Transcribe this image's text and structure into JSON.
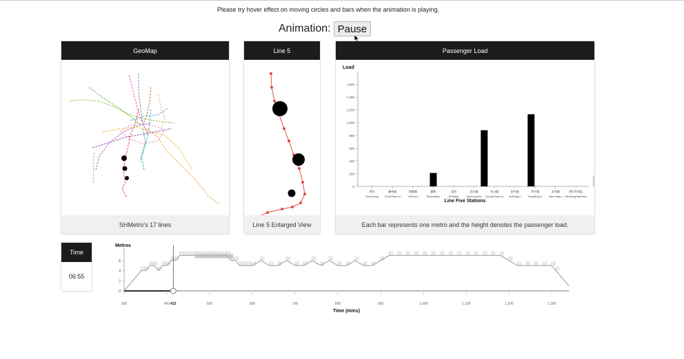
{
  "hint": "Please try hover effect on moving circles and bars when the animation is playing.",
  "animation": {
    "label": "Animation:",
    "button_label": "Pause"
  },
  "geomap": {
    "title": "GeoMap",
    "footer": "SHMetro's 17 lines"
  },
  "line5": {
    "title": "Line 5",
    "footer": "Line 5 Enlarged View"
  },
  "passenger": {
    "title": "Passenger Load",
    "footer": "Each bar represents one metro and the height denotes the passenger load."
  },
  "time": {
    "title": "Time",
    "value": "06:55"
  },
  "colors": {
    "line5": "#e04a44",
    "header": "#1c1c1c",
    "bar": "#000000",
    "bar_faded": "#cccccc"
  },
  "chart_data": [
    {
      "type": "bar",
      "title": "",
      "ylabel": "Load",
      "xlabel": "Line Five Stations",
      "ylim": [
        0,
        1800
      ],
      "yticks": [
        0,
        200,
        400,
        600,
        800,
        1000,
        1200,
        1400,
        1600
      ],
      "ytick_labels": [
        "0",
        "200",
        "400",
        "600",
        "800",
        "1,000",
        "1,200",
        "1,400",
        "1,600"
      ],
      "categories": [
        {
          "cn": "莘庄",
          "en": "Xinzhuang"
        },
        {
          "cn": "春申路",
          "en": "ChunShenLu"
        },
        {
          "cn": "银都路",
          "en": "YinDuLu"
        },
        {
          "cn": "颛桥",
          "en": "ZhuanQiao"
        },
        {
          "cn": "北桥",
          "en": "BeiQiao"
        },
        {
          "cn": "剑川路",
          "en": "JianChuanLu"
        },
        {
          "cn": "东川路",
          "en": "DongChuanLu"
        },
        {
          "cn": "金平路",
          "en": "JinPingLu"
        },
        {
          "cn": "华宁路",
          "en": "HuaNingLu"
        },
        {
          "cn": "文井路",
          "en": "WenJingLu"
        },
        {
          "cn": "闵行开发区",
          "en": "MinHangKaiFaQu"
        }
      ],
      "bars": [
        {
          "position": 3.5,
          "value": 210,
          "faded": false
        },
        {
          "position": 6.0,
          "value": 880,
          "faded": false
        },
        {
          "position": 8.3,
          "value": 1130,
          "faded": false
        },
        {
          "position": 11.5,
          "value": 170,
          "faded": true
        }
      ]
    },
    {
      "type": "line",
      "title": "",
      "ylabel": "Metros",
      "xlabel": "Time (mins)",
      "xlim": [
        300,
        1340
      ],
      "ylim": [
        0,
        8
      ],
      "xticks": [
        300,
        400,
        500,
        600,
        700,
        800,
        900,
        1000,
        1100,
        1200,
        1300
      ],
      "xtick_labels": [
        "300",
        "400",
        "500",
        "600",
        "700",
        "800",
        "900",
        "1,000",
        "1,100",
        "1,200",
        "1,300"
      ],
      "yticks": [
        0,
        2,
        4,
        6
      ],
      "ytick_labels": [
        "0",
        "2",
        "4",
        "6"
      ],
      "current_time": 415,
      "current_time_label": "415",
      "series": [
        {
          "x": [
            300,
            310,
            320,
            330,
            340,
            350,
            360,
            370,
            380,
            390,
            400,
            410,
            420,
            430,
            440,
            450,
            460,
            470,
            480,
            490,
            500,
            510,
            520,
            530,
            540,
            550,
            560,
            570,
            580,
            590,
            600,
            620,
            640,
            660,
            680,
            700,
            720,
            740,
            760,
            780,
            800,
            820,
            840,
            860,
            880,
            900,
            920,
            940,
            960,
            980,
            1000,
            1020,
            1040,
            1060,
            1080,
            1100,
            1120,
            1140,
            1160,
            1180,
            1200,
            1220,
            1240,
            1260,
            1280,
            1300,
            1310,
            1320,
            1330,
            1340
          ],
          "y": [
            0,
            1,
            2,
            3,
            4,
            4,
            5,
            5,
            4,
            5,
            5,
            6,
            6,
            7,
            7,
            7,
            7,
            7,
            7,
            7,
            7,
            7,
            7,
            7,
            7,
            6,
            6,
            5,
            5,
            5,
            5,
            6,
            5,
            5,
            6,
            5,
            5,
            6,
            5,
            6,
            5,
            5,
            6,
            5,
            5,
            6,
            7,
            7,
            7,
            7,
            7,
            7,
            7,
            7,
            7,
            7,
            7,
            7,
            7,
            7,
            6,
            5,
            5,
            5,
            5,
            5,
            4,
            3,
            2,
            1
          ]
        }
      ]
    }
  ]
}
